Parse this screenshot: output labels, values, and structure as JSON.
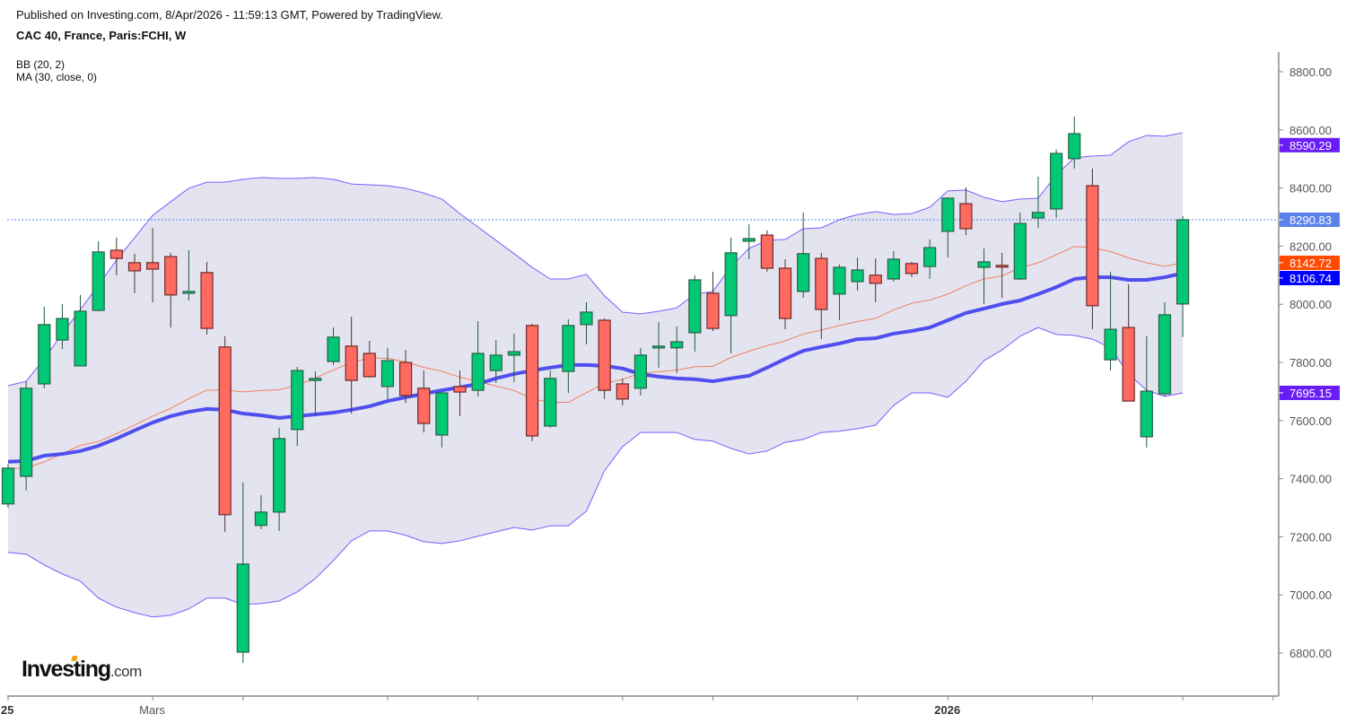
{
  "header": {
    "published": "Published on Investing.com, 8/Apr/2026 - 11:59:13 GMT, Powered by TradingView.",
    "title": "CAC 40, France, Paris:FCHI, W"
  },
  "indicators": [
    "BB (20, 2)",
    "MA (30, close, 0)"
  ],
  "logo": {
    "main": "Investing",
    "suffix": ".com"
  },
  "colors": {
    "up": "#00c875",
    "down": "#ff6a61",
    "band_fill": "#e4e4f0",
    "band_line": "#7b5cff",
    "ma": "#4f4ff0",
    "basis": "#f08060",
    "last_line": "#5b82e8",
    "label_upper": "#6a1cf6",
    "label_last": "#5b82e8",
    "label_basis": "#ff4a00",
    "label_ma": "#0000ff",
    "label_lower": "#6a1cf6"
  },
  "chart_data": {
    "type": "candlestick",
    "title": "CAC 40, France, Paris:FCHI, W",
    "ylim": [
      6700,
      8850
    ],
    "yticks": [
      8800,
      8600,
      8400,
      8200,
      8000,
      7800,
      7600,
      7400,
      7200,
      7000,
      6800
    ],
    "ytick_labels": [
      "8800.00",
      "8600.00",
      "8400.00",
      "8200.00",
      "8000.00",
      "7800.00",
      "7600.00",
      "7400.00",
      "7200.00",
      "7000.00",
      "6800.00"
    ],
    "xticks": [
      {
        "index": 0,
        "label": "25",
        "bold": true
      },
      {
        "index": 8,
        "label": "Mars",
        "bold": false
      },
      {
        "index": 13,
        "label": ""
      },
      {
        "index": 21,
        "label": ""
      },
      {
        "index": 26,
        "label": ""
      },
      {
        "index": 34,
        "label": ""
      },
      {
        "index": 39,
        "label": ""
      },
      {
        "index": 47,
        "label": ""
      },
      {
        "index": 52,
        "label": "2026",
        "bold": true
      },
      {
        "index": 60,
        "label": ""
      },
      {
        "index": 65,
        "label": ""
      },
      {
        "index": 70,
        "label": ""
      }
    ],
    "ohlc": [
      [
        7313,
        7450,
        7300,
        7436
      ],
      [
        7408,
        7735,
        7359,
        7711
      ],
      [
        7726,
        7991,
        7711,
        7930
      ],
      [
        7877,
        8001,
        7846,
        7951
      ],
      [
        7788,
        8032,
        7788,
        7976
      ],
      [
        7979,
        8217,
        7976,
        8180
      ],
      [
        8186,
        8229,
        8100,
        8158
      ],
      [
        8143,
        8174,
        8038,
        8115
      ],
      [
        8143,
        8263,
        8007,
        8121
      ],
      [
        8164,
        8177,
        7920,
        8032
      ],
      [
        8038,
        8186,
        8013,
        8044
      ],
      [
        8109,
        8146,
        7896,
        7917
      ],
      [
        7853,
        7890,
        7217,
        7276
      ],
      [
        6803,
        7387,
        6766,
        7106
      ],
      [
        7239,
        7343,
        7226,
        7285
      ],
      [
        7285,
        7575,
        7220,
        7538
      ],
      [
        7569,
        7785,
        7513,
        7772
      ],
      [
        7738,
        7769,
        7615,
        7745
      ],
      [
        7803,
        7920,
        7791,
        7887
      ],
      [
        7856,
        7957,
        7624,
        7738
      ],
      [
        7831,
        7874,
        7748,
        7751
      ],
      [
        7717,
        7850,
        7674,
        7806
      ],
      [
        7800,
        7843,
        7661,
        7686
      ],
      [
        7711,
        7772,
        7559,
        7590
      ],
      [
        7550,
        7695,
        7507,
        7695
      ],
      [
        7717,
        7772,
        7615,
        7698
      ],
      [
        7704,
        7942,
        7683,
        7831
      ],
      [
        7772,
        7877,
        7729,
        7825
      ],
      [
        7825,
        7899,
        7732,
        7837
      ],
      [
        7927,
        7933,
        7529,
        7547
      ],
      [
        7581,
        7772,
        7575,
        7745
      ],
      [
        7769,
        7948,
        7695,
        7927
      ],
      [
        7930,
        8007,
        7862,
        7973
      ],
      [
        7945,
        7951,
        7674,
        7704
      ],
      [
        7726,
        7745,
        7652,
        7674
      ],
      [
        7711,
        7850,
        7686,
        7825
      ],
      [
        7850,
        7939,
        7782,
        7856
      ],
      [
        7850,
        7924,
        7763,
        7871
      ],
      [
        7902,
        8100,
        7837,
        8084
      ],
      [
        8038,
        8112,
        7908,
        7917
      ],
      [
        7961,
        8229,
        7831,
        8177
      ],
      [
        8217,
        8275,
        8155,
        8226
      ],
      [
        8238,
        8254,
        8112,
        8124
      ],
      [
        8124,
        8155,
        7914,
        7951
      ],
      [
        8044,
        8316,
        8022,
        8174
      ],
      [
        8158,
        8177,
        7880,
        7982
      ],
      [
        8035,
        8137,
        7945,
        8127
      ],
      [
        8078,
        8161,
        8047,
        8118
      ],
      [
        8100,
        8158,
        8007,
        8072
      ],
      [
        8087,
        8183,
        8078,
        8155
      ],
      [
        8140,
        8146,
        8094,
        8106
      ],
      [
        8130,
        8223,
        8087,
        8195
      ],
      [
        8251,
        8368,
        8161,
        8365
      ],
      [
        8346,
        8402,
        8238,
        8260
      ],
      [
        8127,
        8192,
        8001,
        8146
      ],
      [
        8134,
        8177,
        8022,
        8130
      ],
      [
        8087,
        8316,
        8084,
        8278
      ],
      [
        8297,
        8439,
        8263,
        8316
      ],
      [
        8328,
        8532,
        8297,
        8519
      ],
      [
        8501,
        8646,
        8467,
        8587
      ],
      [
        8408,
        8467,
        7914,
        7995
      ],
      [
        7809,
        8112,
        7772,
        7914
      ],
      [
        7920,
        8069,
        7667,
        7667
      ],
      [
        7544,
        7890,
        7507,
        7701
      ],
      [
        7692,
        8007,
        7683,
        7964
      ],
      [
        8001,
        8303,
        7887,
        8290.83
      ]
    ],
    "bb_upper": [
      7720,
      7735,
      7812,
      7899,
      7982,
      8066,
      8152,
      8229,
      8306,
      8353,
      8399,
      8420,
      8420,
      8430,
      8436,
      8433,
      8433,
      8436,
      8430,
      8414,
      8411,
      8408,
      8399,
      8383,
      8362,
      8312,
      8266,
      8220,
      8174,
      8127,
      8087,
      8087,
      8103,
      8029,
      7973,
      7967,
      7976,
      7988,
      8035,
      8044,
      8130,
      8192,
      8220,
      8223,
      8260,
      8263,
      8291,
      8309,
      8319,
      8309,
      8312,
      8334,
      8390,
      8393,
      8368,
      8353,
      8362,
      8365,
      8445,
      8504,
      8510,
      8513,
      8559,
      8581,
      8578,
      8590.29
    ],
    "bb_lower": [
      7146,
      7140,
      7103,
      7072,
      7047,
      6989,
      6958,
      6939,
      6924,
      6930,
      6952,
      6989,
      6989,
      6967,
      6970,
      6979,
      7010,
      7056,
      7118,
      7186,
      7220,
      7220,
      7205,
      7183,
      7177,
      7186,
      7202,
      7217,
      7232,
      7223,
      7238,
      7238,
      7288,
      7427,
      7510,
      7559,
      7559,
      7559,
      7535,
      7529,
      7504,
      7485,
      7495,
      7525,
      7535,
      7559,
      7563,
      7572,
      7584,
      7652,
      7695,
      7695,
      7680,
      7735,
      7806,
      7843,
      7890,
      7920,
      7896,
      7893,
      7880,
      7850,
      7760,
      7704,
      7683,
      7695.15
    ],
    "ma30": [
      7458,
      7461,
      7479,
      7485,
      7495,
      7513,
      7538,
      7566,
      7593,
      7615,
      7630,
      7640,
      7637,
      7624,
      7618,
      7609,
      7615,
      7621,
      7627,
      7637,
      7649,
      7667,
      7680,
      7692,
      7704,
      7714,
      7726,
      7745,
      7760,
      7772,
      7782,
      7791,
      7791,
      7788,
      7779,
      7760,
      7751,
      7745,
      7742,
      7735,
      7745,
      7754,
      7782,
      7812,
      7840,
      7853,
      7865,
      7880,
      7883,
      7899,
      7908,
      7920,
      7945,
      7970,
      7985,
      8001,
      8013,
      8035,
      8059,
      8087,
      8093,
      8093,
      8084,
      8084,
      8093,
      8106.74
    ],
    "last_labels": [
      {
        "value": "8590.29",
        "series": "bb_upper",
        "color_key": "label_upper"
      },
      {
        "value": "8290.83",
        "series": "close",
        "color_key": "label_last"
      },
      {
        "value": "8142.72",
        "series": "bb_basis",
        "color_key": "label_basis"
      },
      {
        "value": "8106.74",
        "series": "ma30",
        "color_key": "label_ma"
      },
      {
        "value": "7695.15",
        "series": "bb_lower",
        "color_key": "label_lower"
      }
    ]
  }
}
